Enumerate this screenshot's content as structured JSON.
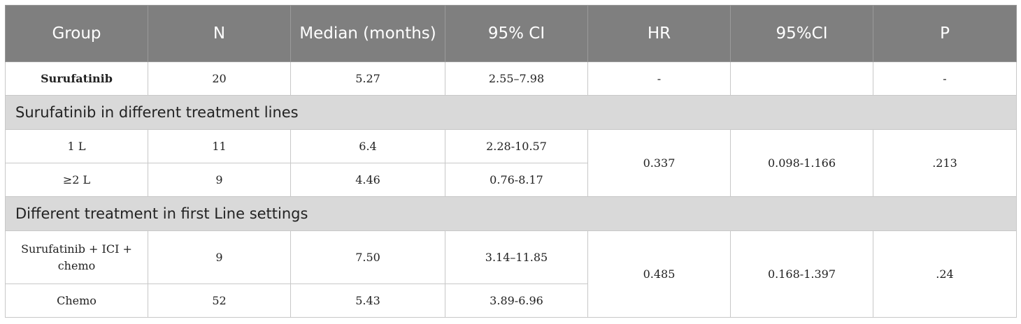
{
  "headers": [
    "Group",
    "N",
    "Median (months)",
    "95% CI",
    "HR",
    "95%CI",
    "P"
  ],
  "row_overall": {
    "group": "Surufatinib",
    "n": "20",
    "median": "5.27",
    "ci": "2.55–7.98",
    "hr": "-",
    "hr_ci": "",
    "p": "-"
  },
  "section1": {
    "title": "Surufatinib in different treatment lines",
    "rows": [
      {
        "group": "1 L",
        "n": "11",
        "median": "6.4",
        "ci": "2.28-10.57"
      },
      {
        "group": "≥2 L",
        "n": "9",
        "median": "4.46",
        "ci": "0.76-8.17"
      }
    ],
    "hr": "0.337",
    "hr_ci": "0.098-1.166",
    "p": ".213"
  },
  "section2": {
    "title": "Different treatment in first Line settings",
    "rows": [
      {
        "group": "Surufatinib + ICI + chemo",
        "n": "9",
        "median": "7.50",
        "ci": "3.14–11.85"
      },
      {
        "group": "Chemo",
        "n": "52",
        "median": "5.43",
        "ci": "3.89-6.96"
      }
    ],
    "hr": "0.485",
    "hr_ci": "0.168-1.397",
    "p": ".24"
  }
}
